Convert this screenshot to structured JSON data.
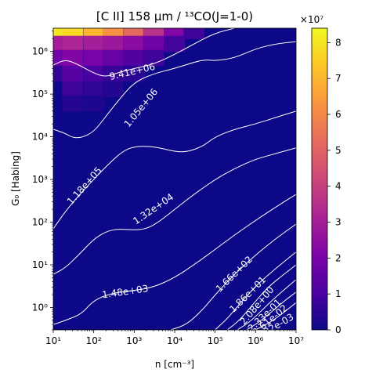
{
  "chart_data": {
    "type": "heatmap",
    "title": "[C II] 158 μm / ¹³CO(J=1-0)",
    "xlabel": "n [cm⁻³]",
    "ylabel": "G₀ [Habing]",
    "x_scale": "log",
    "y_scale": "log",
    "xlim": [
      10,
      10000000
    ],
    "ylim": [
      0.3,
      3500000
    ],
    "x_ticks": [
      {
        "value": 10,
        "label": "10¹"
      },
      {
        "value": 100,
        "label": "10²"
      },
      {
        "value": 1000,
        "label": "10³"
      },
      {
        "value": 10000,
        "label": "10⁴"
      },
      {
        "value": 100000,
        "label": "10⁵"
      },
      {
        "value": 1000000,
        "label": "10⁶"
      },
      {
        "value": 10000000,
        "label": "10⁷"
      }
    ],
    "y_ticks": [
      {
        "value": 1,
        "label": "10⁰"
      },
      {
        "value": 10,
        "label": "10¹"
      },
      {
        "value": 100,
        "label": "10²"
      },
      {
        "value": 1000,
        "label": "10³"
      },
      {
        "value": 10000,
        "label": "10⁴"
      },
      {
        "value": 100000,
        "label": "10⁵"
      },
      {
        "value": 1000000,
        "label": "10⁶"
      }
    ],
    "colorbar": {
      "colormap": "plasma",
      "min": 0,
      "max": 84000000,
      "multiplier_label": "×10⁷",
      "ticks": [
        {
          "value": 0,
          "label": "0"
        },
        {
          "value": 10000000,
          "label": "1"
        },
        {
          "value": 20000000,
          "label": "2"
        },
        {
          "value": 30000000,
          "label": "3"
        },
        {
          "value": 40000000,
          "label": "4"
        },
        {
          "value": 50000000,
          "label": "5"
        },
        {
          "value": 60000000,
          "label": "6"
        },
        {
          "value": 70000000,
          "label": "7"
        },
        {
          "value": 80000000,
          "label": "8"
        }
      ]
    },
    "background_color": "#0d0887",
    "contours": [
      {
        "level_label": "9.41e+06",
        "points": [
          [
            10,
            480000
          ],
          [
            20,
            650000
          ],
          [
            40,
            500000
          ],
          [
            100,
            310000
          ],
          [
            200,
            250000
          ],
          [
            400,
            320000
          ],
          [
            1000,
            400000
          ],
          [
            3000,
            500000
          ],
          [
            10000,
            850000
          ],
          [
            30000,
            1500000
          ],
          [
            100000,
            2700000
          ],
          [
            300000,
            3500000
          ]
        ],
        "label_at": [
          900,
          330000
        ]
      },
      {
        "level_label": "1.05e+06",
        "points": [
          [
            10,
            15000
          ],
          [
            20,
            12000
          ],
          [
            30,
            9500
          ],
          [
            50,
            9500
          ],
          [
            100,
            13000
          ],
          [
            200,
            30000
          ],
          [
            400,
            70000
          ],
          [
            1000,
            190000
          ],
          [
            3000,
            300000
          ],
          [
            10000,
            400000
          ],
          [
            50000,
            650000
          ],
          [
            100000,
            600000
          ],
          [
            300000,
            700000
          ],
          [
            1000000,
            1150000
          ],
          [
            3000000,
            1500000
          ],
          [
            10000000,
            1700000
          ]
        ],
        "label_at": [
          1500,
          47000
        ]
      },
      {
        "level_label": "1.18e+05",
        "points": [
          [
            10,
            70
          ],
          [
            20,
            180
          ],
          [
            50,
            500
          ],
          [
            100,
            1000
          ],
          [
            200,
            2000
          ],
          [
            500,
            4500
          ],
          [
            1000,
            6000
          ],
          [
            3000,
            6000
          ],
          [
            10000,
            4500
          ],
          [
            20000,
            4400
          ],
          [
            50000,
            6000
          ],
          [
            100000,
            10000
          ],
          [
            300000,
            15000
          ],
          [
            1000000,
            20000
          ],
          [
            3000000,
            28000
          ],
          [
            10000000,
            40000
          ]
        ],
        "label_at": [
          60,
          700
        ]
      },
      {
        "level_label": "1.32e+04",
        "points": [
          [
            10,
            6
          ],
          [
            20,
            8.5
          ],
          [
            50,
            20
          ],
          [
            100,
            40
          ],
          [
            200,
            60
          ],
          [
            400,
            70
          ],
          [
            1000,
            65
          ],
          [
            2000,
            70
          ],
          [
            4000,
            100
          ],
          [
            10000,
            200
          ],
          [
            30000,
            450
          ],
          [
            100000,
            1000
          ],
          [
            300000,
            1800
          ],
          [
            1000000,
            3000
          ],
          [
            3000000,
            4000
          ],
          [
            10000000,
            5500
          ]
        ],
        "label_at": [
          3000,
          200
        ]
      },
      {
        "level_label": "1.48e+03",
        "points": [
          [
            10,
            0.4
          ],
          [
            20,
            0.5
          ],
          [
            50,
            0.7
          ],
          [
            100,
            1.5
          ],
          [
            300,
            2.2
          ],
          [
            1000,
            2.5
          ],
          [
            3000,
            3
          ],
          [
            10000,
            5
          ],
          [
            30000,
            10
          ],
          [
            100000,
            23
          ],
          [
            300000,
            50
          ],
          [
            1000000,
            110
          ],
          [
            3000000,
            220
          ],
          [
            10000000,
            450
          ]
        ],
        "label_at": [
          600,
          2.3
        ]
      },
      {
        "level_label": "1.66e+02",
        "points": [
          [
            8000,
            0.3
          ],
          [
            20000,
            0.4
          ],
          [
            50000,
            0.9
          ],
          [
            100000,
            2
          ],
          [
            300000,
            6
          ],
          [
            1000000,
            17
          ],
          [
            3000000,
            40
          ],
          [
            10000000,
            90
          ]
        ],
        "label_at": [
          300000,
          6
        ]
      },
      {
        "level_label": "1.86e+01",
        "points": [
          [
            100000,
            0.3
          ],
          [
            200000,
            0.55
          ],
          [
            400000,
            1.2
          ],
          [
            1000000,
            3.2
          ],
          [
            3000000,
            8
          ],
          [
            10000000,
            20
          ]
        ],
        "label_at": [
          650000,
          2
        ]
      },
      {
        "level_label": "2.08e+00",
        "points": [
          [
            200000,
            0.3
          ],
          [
            400000,
            0.5
          ],
          [
            800000,
            1.1
          ],
          [
            2000000,
            3
          ],
          [
            5000000,
            6
          ],
          [
            10000000,
            10
          ]
        ],
        "label_at": [
          1100000,
          1.1
        ]
      },
      {
        "level_label": "2.33e-01",
        "points": [
          [
            350000,
            0.3
          ],
          [
            700000,
            0.45
          ],
          [
            1500000,
            0.9
          ],
          [
            3000000,
            1.7
          ],
          [
            10000000,
            4.5
          ]
        ],
        "label_at": [
          1700000,
          0.65
        ]
      },
      {
        "level_label": "2.61e-02",
        "points": [
          [
            600000,
            0.3
          ],
          [
            1200000,
            0.45
          ],
          [
            2500000,
            0.8
          ],
          [
            5000000,
            1.4
          ],
          [
            10000000,
            2.3
          ]
        ],
        "label_at": [
          2300000,
          0.5
        ]
      },
      {
        "level_label": "2.92e-03",
        "points": [
          [
            1000000,
            0.3
          ],
          [
            2000000,
            0.42
          ],
          [
            4000000,
            0.65
          ],
          [
            10000000,
            1.3
          ]
        ],
        "label_at": [
          3000000,
          0.35
        ]
      }
    ],
    "hot_region": [
      {
        "x": 10,
        "y": 3000000,
        "value": 80000000
      },
      {
        "x": 30,
        "y": 3000000,
        "value": 78000000
      },
      {
        "x": 100,
        "y": 3000000,
        "value": 70000000
      },
      {
        "x": 300,
        "y": 3000000,
        "value": 62000000
      },
      {
        "x": 1000,
        "y": 3000000,
        "value": 52000000
      },
      {
        "x": 3000,
        "y": 3000000,
        "value": 36000000
      },
      {
        "x": 10000,
        "y": 3000000,
        "value": 22000000
      },
      {
        "x": 30000,
        "y": 3000000,
        "value": 8000000
      },
      {
        "x": 10,
        "y": 1500000,
        "value": 30000000
      },
      {
        "x": 30,
        "y": 1500000,
        "value": 32000000
      },
      {
        "x": 100,
        "y": 1500000,
        "value": 30000000
      },
      {
        "x": 300,
        "y": 1500000,
        "value": 28000000
      },
      {
        "x": 1000,
        "y": 1500000,
        "value": 24000000
      },
      {
        "x": 3000,
        "y": 1500000,
        "value": 18000000
      },
      {
        "x": 10000,
        "y": 1500000,
        "value": 9000000
      },
      {
        "x": 10,
        "y": 700000,
        "value": 18000000
      },
      {
        "x": 30,
        "y": 700000,
        "value": 22000000
      },
      {
        "x": 100,
        "y": 700000,
        "value": 20000000
      },
      {
        "x": 300,
        "y": 700000,
        "value": 16000000
      },
      {
        "x": 1000,
        "y": 700000,
        "value": 12000000
      },
      {
        "x": 3000,
        "y": 700000,
        "value": 8000000
      },
      {
        "x": 10,
        "y": 300000,
        "value": 6000000
      },
      {
        "x": 30,
        "y": 300000,
        "value": 13000000
      },
      {
        "x": 100,
        "y": 300000,
        "value": 10000000
      },
      {
        "x": 300,
        "y": 300000,
        "value": 7000000
      },
      {
        "x": 1000,
        "y": 300000,
        "value": 5000000
      },
      {
        "x": 30,
        "y": 130000,
        "value": 8000000
      },
      {
        "x": 100,
        "y": 130000,
        "value": 6000000
      },
      {
        "x": 300,
        "y": 130000,
        "value": 4000000
      },
      {
        "x": 30,
        "y": 60000,
        "value": 4000000
      },
      {
        "x": 100,
        "y": 60000,
        "value": 3000000
      }
    ]
  }
}
